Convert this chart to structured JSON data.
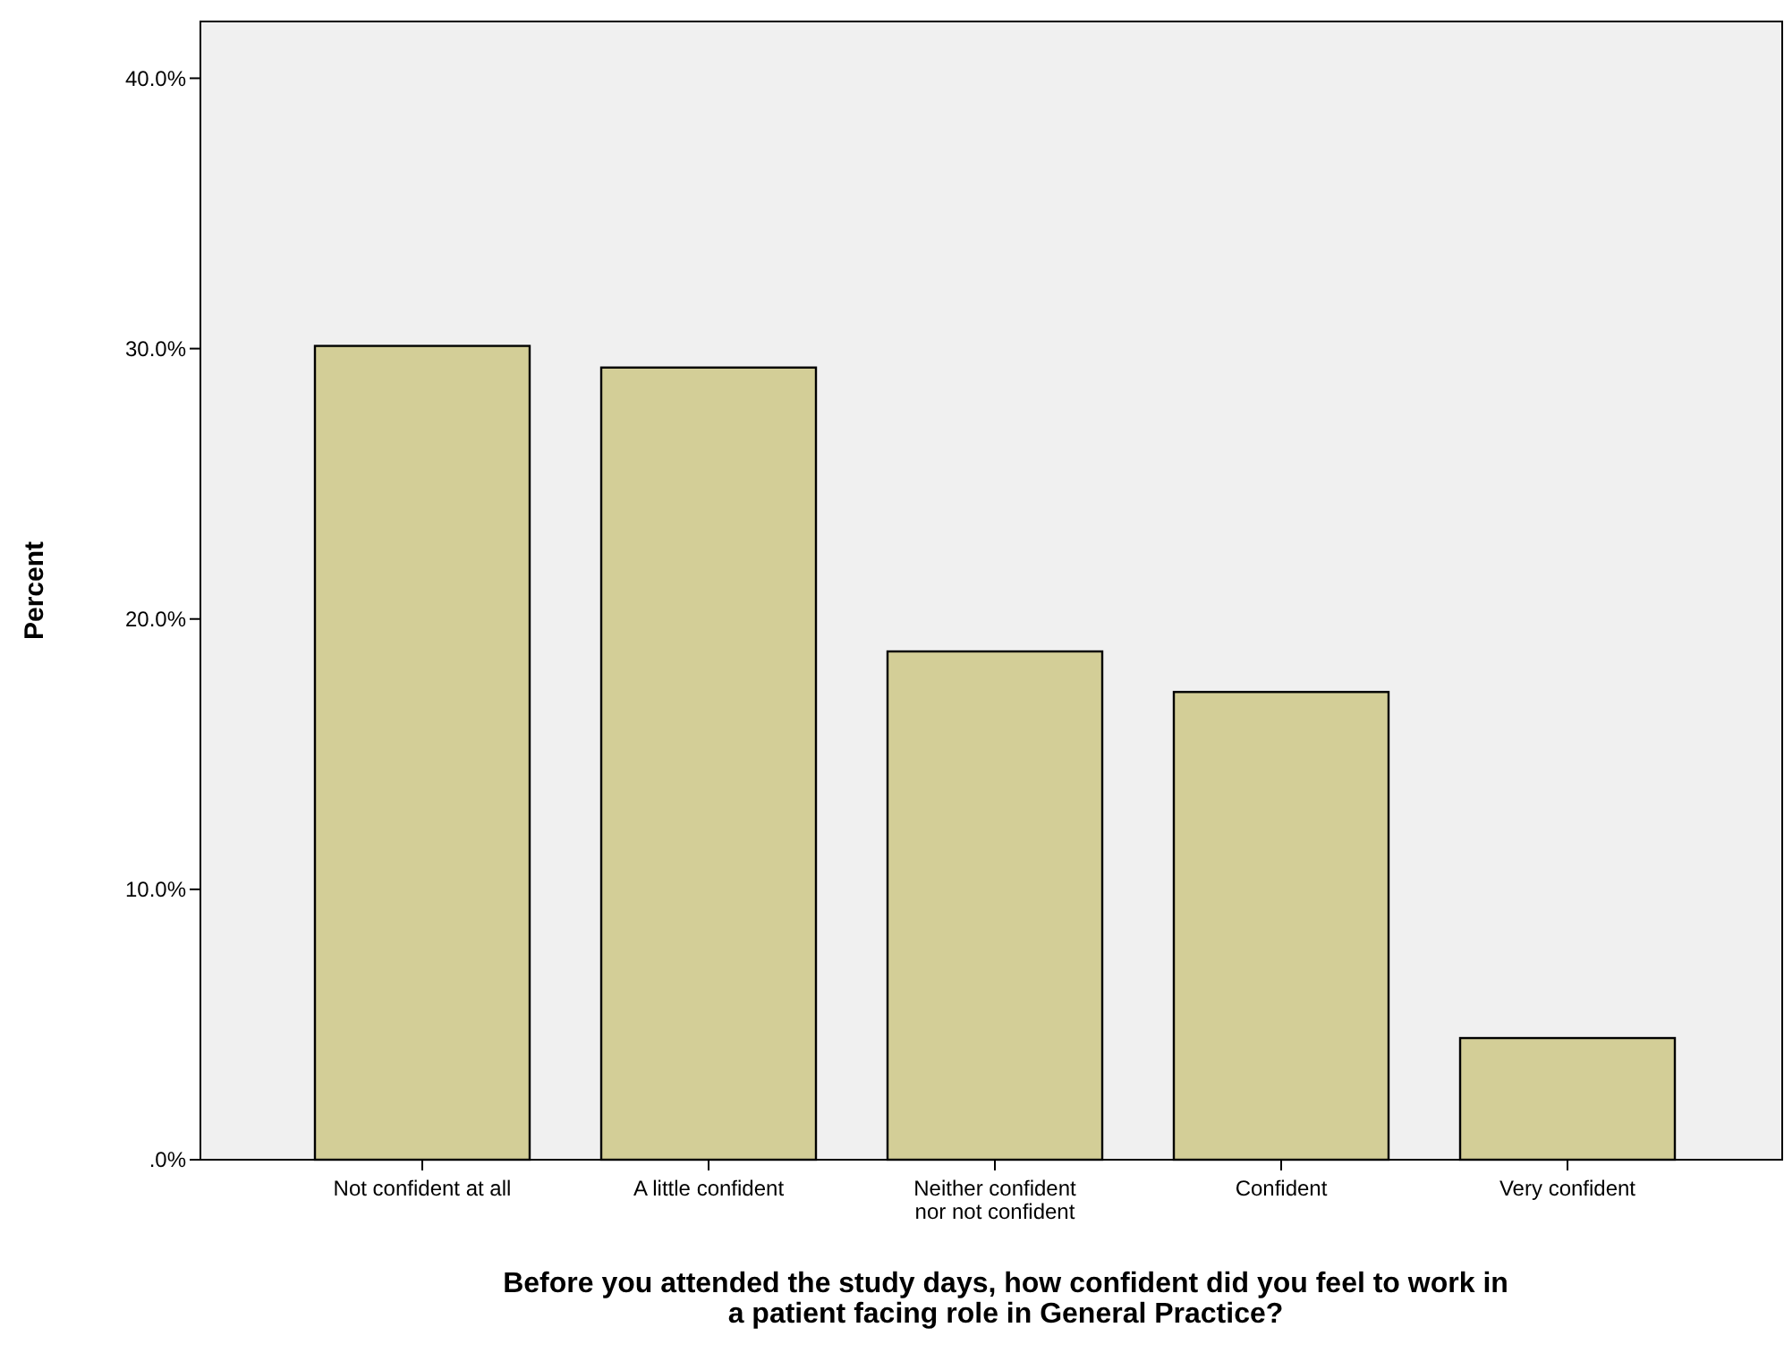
{
  "chart_data": {
    "type": "bar",
    "xlabel": "Before you attended the study days, how confident did you feel to work in a patient facing role in General Practice?",
    "ylabel": "Percent",
    "categories": [
      "Not confident at all",
      "A little confident",
      "Neither confident nor not confident",
      "Confident",
      "Very confident"
    ],
    "values": [
      30.1,
      29.3,
      18.8,
      17.3,
      4.5
    ],
    "color": "#d3ce97",
    "ylim": [
      0,
      42.1
    ],
    "yticks": [
      {
        "value": 0,
        "label": ".0%"
      },
      {
        "value": 10,
        "label": "10.0%"
      },
      {
        "value": 20,
        "label": "20.0%"
      },
      {
        "value": 30,
        "label": "30.0%"
      },
      {
        "value": 40,
        "label": "40.0%"
      }
    ],
    "grid": false
  }
}
